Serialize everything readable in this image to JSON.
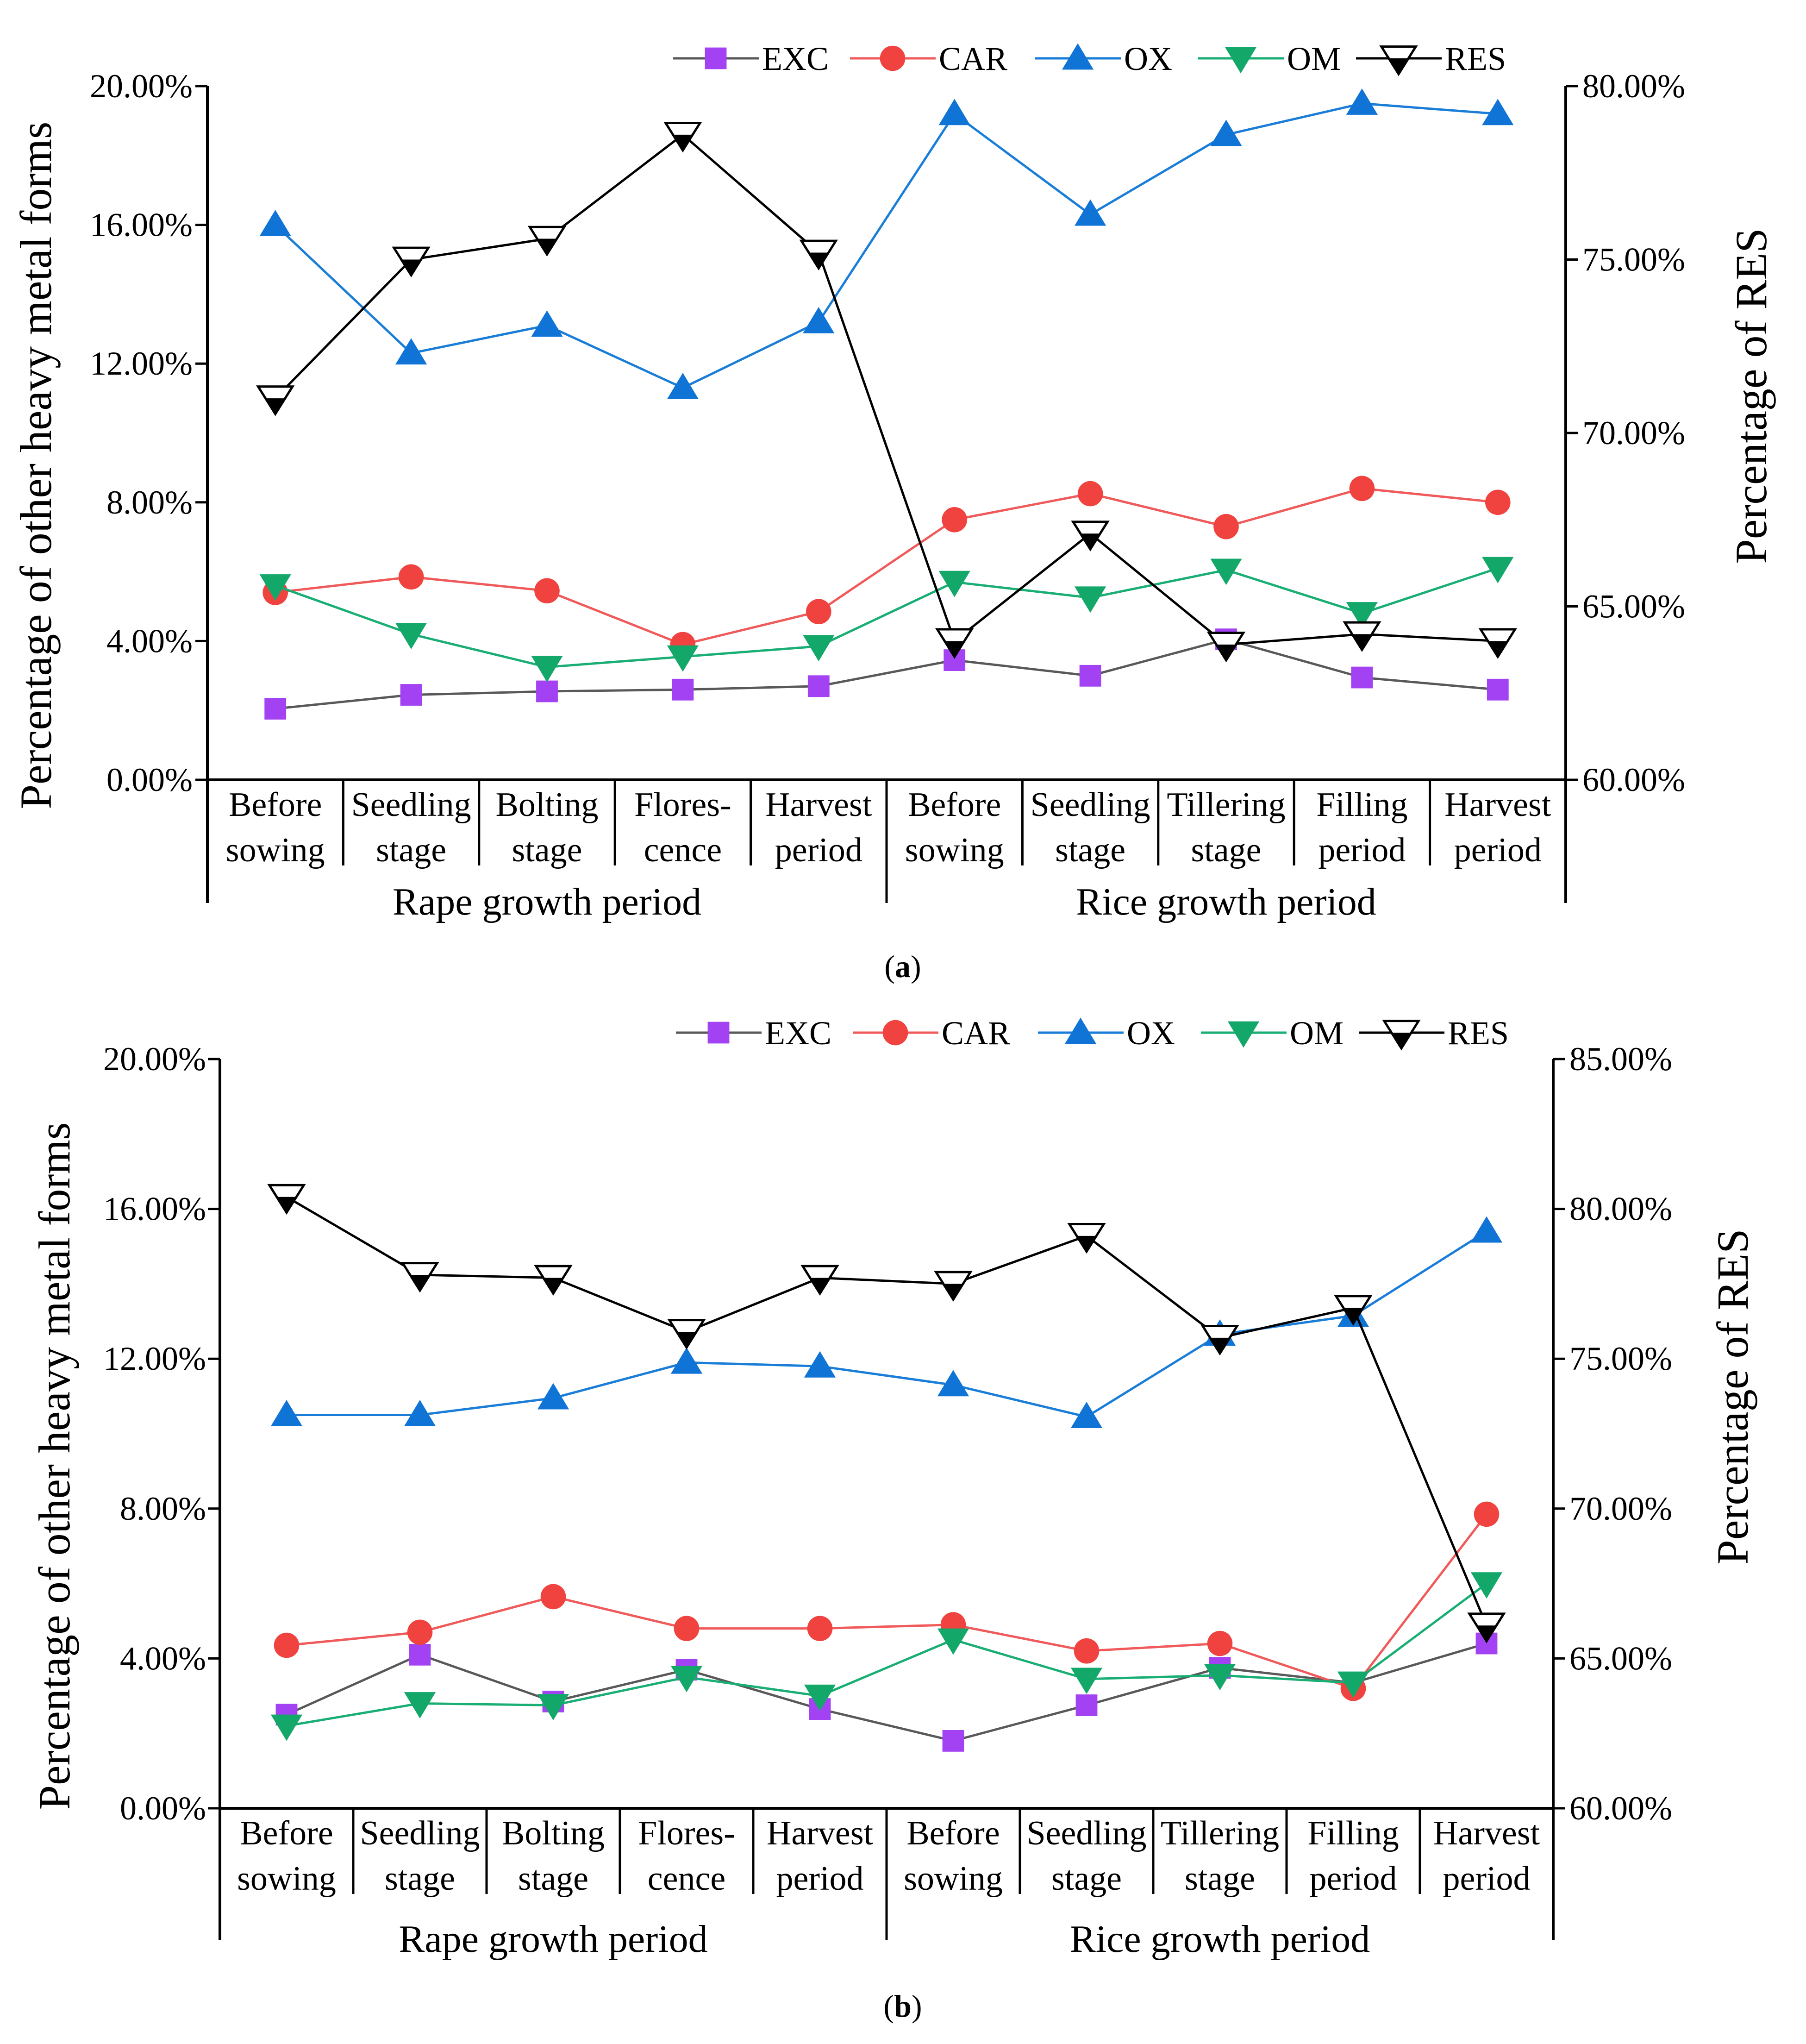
{
  "colors": {
    "EXC": "#a342f2",
    "CAR": "#f0433f",
    "OX": "#0f74d6",
    "OM": "#13a86a",
    "RES": "#000000",
    "EXC_line": "#595959",
    "CAR_line": "#f05a5a",
    "OX_line": "#1a7ed8",
    "OM_line": "#19ae73",
    "RES_line": "#000000"
  },
  "legend": [
    "EXC",
    "CAR",
    "OX",
    "OM",
    "RES"
  ],
  "chart_data": [
    {
      "panel": "(a)",
      "panel_letter": "a",
      "type": "line",
      "ylabel_left": "Percentage of other heavy metal forms",
      "ylabel_right": "Percentage of RES",
      "left_ticks": [
        "0.00%",
        "4.00%",
        "8.00%",
        "12.00%",
        "16.00%",
        "20.00%"
      ],
      "right_ticks": [
        "60.00%",
        "65.00%",
        "70.00%",
        "75.00%",
        "80.00%"
      ],
      "ylim_left": [
        0,
        20
      ],
      "ylim_right": [
        60,
        80
      ],
      "categories": [
        [
          "Before",
          "sowing"
        ],
        [
          "Seedling",
          "stage"
        ],
        [
          "Bolting",
          "stage"
        ],
        [
          "Flores-",
          "cence"
        ],
        [
          "Harvest",
          "period"
        ],
        [
          "Before",
          "sowing"
        ],
        [
          "Seedling",
          "stage"
        ],
        [
          "Tillering",
          "stage"
        ],
        [
          "Filling",
          "period"
        ],
        [
          "Harvest",
          "period"
        ]
      ],
      "groups": [
        "Rape growth period",
        "Rice growth period"
      ],
      "series": [
        {
          "name": "EXC",
          "axis": "left",
          "marker": "square",
          "values": [
            2.05,
            2.45,
            2.55,
            2.6,
            2.7,
            3.45,
            3.0,
            4.05,
            2.95,
            2.6
          ]
        },
        {
          "name": "CAR",
          "axis": "left",
          "marker": "circle",
          "values": [
            5.4,
            5.85,
            5.45,
            3.9,
            4.85,
            7.5,
            8.25,
            7.3,
            8.4,
            8.0
          ]
        },
        {
          "name": "OX",
          "axis": "left",
          "marker": "triangle-up",
          "values": [
            16.0,
            12.3,
            13.1,
            11.3,
            13.2,
            19.2,
            16.3,
            18.6,
            19.5,
            19.2
          ]
        },
        {
          "name": "OM",
          "axis": "left",
          "marker": "triangle-down",
          "values": [
            5.6,
            4.2,
            3.25,
            3.55,
            3.85,
            5.7,
            5.25,
            6.05,
            4.8,
            6.1
          ]
        },
        {
          "name": "RES",
          "axis": "right",
          "marker": "triangle-down-half",
          "values": [
            71.0,
            75.0,
            75.6,
            78.6,
            75.2,
            64.0,
            67.1,
            63.9,
            64.2,
            64.0
          ]
        }
      ]
    },
    {
      "panel": "(b)",
      "panel_letter": "b",
      "type": "line",
      "ylabel_left": "Percentage of other heavy metal forms",
      "ylabel_right": "Percentage of RES",
      "left_ticks": [
        "0.00%",
        "4.00%",
        "8.00%",
        "12.00%",
        "16.00%",
        "20.00%"
      ],
      "right_ticks": [
        "60.00%",
        "65.00%",
        "70.00%",
        "75.00%",
        "80.00%",
        "85.00%"
      ],
      "ylim_left": [
        0,
        20
      ],
      "ylim_right": [
        60,
        85
      ],
      "categories": [
        [
          "Before",
          "sowing"
        ],
        [
          "Seedling",
          "stage"
        ],
        [
          "Bolting",
          "stage"
        ],
        [
          "Flores-",
          "cence"
        ],
        [
          "Harvest",
          "period"
        ],
        [
          "Before",
          "sowing"
        ],
        [
          "Seedling",
          "stage"
        ],
        [
          "Tillering",
          "stage"
        ],
        [
          "Filling",
          "period"
        ],
        [
          "Harvest",
          "period"
        ]
      ],
      "groups": [
        "Rape growth period",
        "Rice growth period"
      ],
      "series": [
        {
          "name": "EXC",
          "axis": "left",
          "marker": "square",
          "values": [
            2.5,
            4.1,
            2.85,
            3.7,
            2.65,
            1.8,
            2.75,
            3.75,
            3.35,
            4.4
          ]
        },
        {
          "name": "CAR",
          "axis": "left",
          "marker": "circle",
          "values": [
            4.35,
            4.7,
            5.65,
            4.8,
            4.8,
            4.9,
            4.2,
            4.4,
            3.2,
            7.85
          ]
        },
        {
          "name": "OX",
          "axis": "left",
          "marker": "triangle-up",
          "values": [
            10.5,
            10.5,
            10.95,
            11.9,
            11.8,
            11.3,
            10.45,
            12.65,
            13.15,
            15.4
          ]
        },
        {
          "name": "OM",
          "axis": "left",
          "marker": "triangle-down",
          "values": [
            2.2,
            2.8,
            2.75,
            3.5,
            3.0,
            4.5,
            3.45,
            3.55,
            3.35,
            6.0
          ]
        },
        {
          "name": "RES",
          "axis": "right",
          "marker": "triangle-down-half",
          "values": [
            80.4,
            77.8,
            77.7,
            75.9,
            77.7,
            77.5,
            79.1,
            75.7,
            76.7,
            66.1
          ]
        }
      ]
    }
  ]
}
